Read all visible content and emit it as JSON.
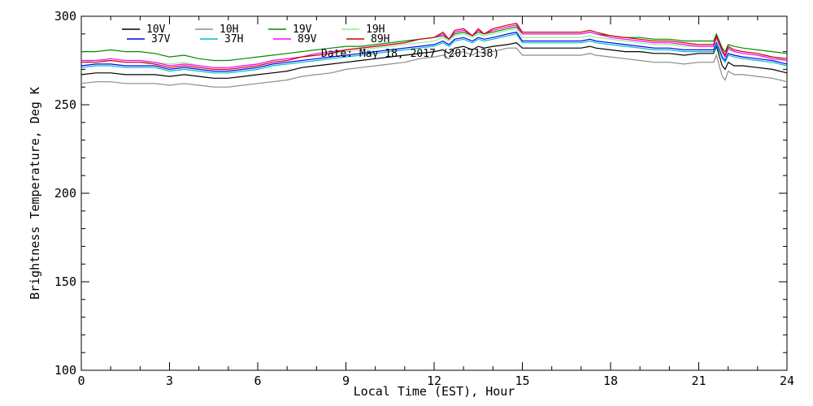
{
  "chart_data": {
    "type": "line",
    "xlabel": "Local Time (EST), Hour",
    "ylabel": "Brightness Temperature, Deg K",
    "annotation": "Date: May 18, 2017 (2017138)",
    "xlim": [
      0,
      24
    ],
    "ylim": [
      100,
      300
    ],
    "xticks": [
      0,
      3,
      6,
      9,
      12,
      15,
      18,
      21,
      24
    ],
    "yticks": [
      100,
      150,
      200,
      250,
      300
    ],
    "grid": false,
    "legend_position": "top",
    "x": [
      0,
      0.5,
      1,
      1.5,
      2,
      2.5,
      3,
      3.5,
      4,
      4.5,
      5,
      5.5,
      6,
      6.5,
      7,
      7.5,
      8,
      8.5,
      9,
      9.5,
      10,
      10.5,
      11,
      11.5,
      12,
      12.3,
      12.5,
      12.7,
      13,
      13.3,
      13.5,
      13.7,
      14,
      14.5,
      14.8,
      15,
      15.5,
      16,
      16.5,
      17,
      17.3,
      17.5,
      18,
      18.5,
      19,
      19.5,
      20,
      20.5,
      21,
      21.5,
      21.6,
      21.8,
      21.9,
      22,
      22.2,
      22.5,
      23,
      23.5,
      24
    ],
    "series": [
      {
        "name": "10V",
        "color": "#000000",
        "values": [
          267,
          268,
          268,
          267,
          267,
          267,
          266,
          267,
          266,
          265,
          265,
          266,
          267,
          268,
          269,
          271,
          272,
          273,
          274,
          275,
          276,
          277,
          278,
          279,
          280,
          281,
          279,
          282,
          283,
          281,
          283,
          282,
          283,
          284,
          285,
          282,
          282,
          282,
          282,
          282,
          283,
          282,
          281,
          280,
          280,
          279,
          279,
          278,
          279,
          279,
          283,
          272,
          270,
          274,
          272,
          272,
          271,
          270,
          268
        ]
      },
      {
        "name": "10H",
        "color": "#8c8c8c",
        "values": [
          262,
          263,
          263,
          262,
          262,
          262,
          261,
          262,
          261,
          260,
          260,
          261,
          262,
          263,
          264,
          266,
          267,
          268,
          270,
          271,
          272,
          273,
          274,
          276,
          277,
          278,
          276,
          279,
          280,
          278,
          280,
          279,
          280,
          282,
          282,
          278,
          278,
          278,
          278,
          278,
          279,
          278,
          277,
          276,
          275,
          274,
          274,
          273,
          274,
          274,
          278,
          266,
          264,
          269,
          267,
          267,
          266,
          265,
          263
        ]
      },
      {
        "name": "19V",
        "color": "#008c00",
        "values": [
          280,
          280,
          281,
          280,
          280,
          279,
          277,
          278,
          276,
          275,
          275,
          276,
          277,
          278,
          279,
          280,
          281,
          282,
          283,
          283,
          284,
          285,
          286,
          287,
          288,
          289,
          287,
          290,
          291,
          289,
          291,
          290,
          291,
          293,
          294,
          290,
          290,
          290,
          290,
          290,
          291,
          290,
          289,
          288,
          288,
          287,
          287,
          286,
          286,
          286,
          290,
          282,
          280,
          284,
          283,
          282,
          281,
          280,
          279
        ]
      },
      {
        "name": "19H",
        "color": "#90ee90",
        "values": [
          274,
          275,
          275,
          274,
          274,
          274,
          273,
          274,
          272,
          271,
          271,
          272,
          273,
          275,
          276,
          277,
          278,
          279,
          280,
          281,
          282,
          283,
          284,
          285,
          286,
          288,
          286,
          289,
          290,
          288,
          290,
          289,
          290,
          292,
          293,
          288,
          288,
          288,
          288,
          288,
          289,
          288,
          287,
          286,
          285,
          284,
          284,
          283,
          283,
          283,
          287,
          279,
          277,
          281,
          280,
          279,
          278,
          277,
          275
        ]
      },
      {
        "name": "37V",
        "color": "#0000ff",
        "values": [
          272,
          273,
          273,
          272,
          272,
          272,
          270,
          271,
          270,
          269,
          269,
          270,
          271,
          273,
          274,
          275,
          276,
          277,
          278,
          279,
          280,
          281,
          282,
          283,
          284,
          286,
          284,
          287,
          288,
          286,
          288,
          287,
          288,
          290,
          291,
          286,
          286,
          286,
          286,
          286,
          287,
          286,
          285,
          284,
          283,
          282,
          282,
          281,
          281,
          281,
          285,
          277,
          275,
          279,
          278,
          277,
          276,
          275,
          273
        ]
      },
      {
        "name": "37H",
        "color": "#00bfbf",
        "values": [
          271,
          272,
          272,
          271,
          271,
          271,
          269,
          270,
          269,
          268,
          268,
          269,
          270,
          272,
          273,
          274,
          275,
          276,
          277,
          278,
          279,
          280,
          281,
          282,
          283,
          285,
          283,
          286,
          287,
          285,
          287,
          286,
          287,
          289,
          290,
          285,
          285,
          285,
          285,
          285,
          286,
          285,
          284,
          283,
          282,
          281,
          281,
          280,
          280,
          280,
          284,
          276,
          274,
          278,
          277,
          276,
          275,
          274,
          272
        ]
      },
      {
        "name": "89V",
        "color": "#ff00ff",
        "values": [
          275,
          275,
          276,
          275,
          275,
          274,
          272,
          273,
          272,
          271,
          271,
          272,
          273,
          275,
          276,
          277,
          279,
          280,
          281,
          282,
          283,
          284,
          285,
          287,
          288,
          290,
          287,
          291,
          292,
          289,
          292,
          290,
          292,
          294,
          295,
          290,
          290,
          290,
          290,
          290,
          291,
          290,
          288,
          287,
          286,
          285,
          285,
          284,
          283,
          283,
          288,
          280,
          277,
          282,
          280,
          279,
          278,
          276,
          275
        ]
      },
      {
        "name": "89H",
        "color": "#cc0000",
        "values": [
          274,
          274,
          275,
          274,
          274,
          273,
          271,
          272,
          271,
          270,
          270,
          271,
          272,
          274,
          275,
          277,
          278,
          279,
          281,
          282,
          283,
          284,
          285,
          287,
          288,
          291,
          287,
          292,
          293,
          289,
          293,
          290,
          293,
          295,
          296,
          291,
          291,
          291,
          291,
          291,
          292,
          291,
          289,
          288,
          287,
          286,
          286,
          285,
          284,
          284,
          289,
          281,
          278,
          283,
          281,
          280,
          279,
          277,
          276
        ]
      }
    ]
  }
}
